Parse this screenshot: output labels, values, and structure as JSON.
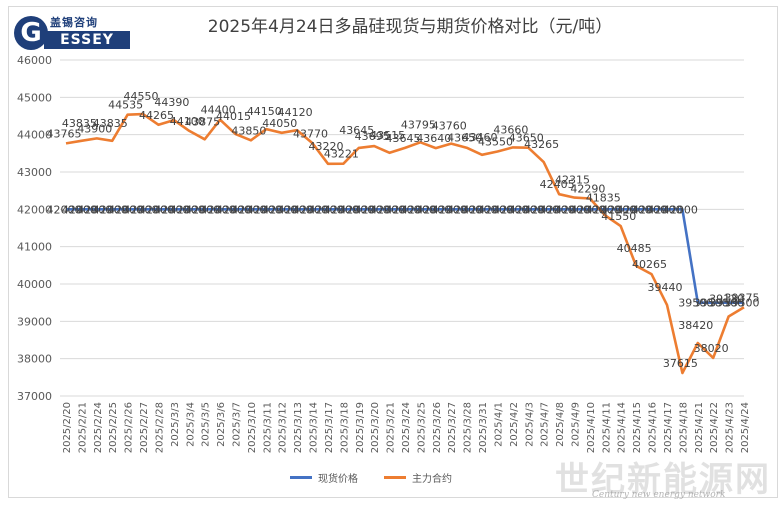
{
  "title": "2025年4月24日多晶硅现货与期货价格对比（元/吨）",
  "logo": {
    "letter": "G",
    "cn": "盖锡咨询",
    "en": "ESSEY"
  },
  "watermark": {
    "cn": "世纪新能源网",
    "en": "Century new energy network"
  },
  "chart_data": {
    "type": "line",
    "title": "2025年4月24日多晶硅现货与期货价格对比（元/吨）",
    "ylim": [
      37000,
      46000
    ],
    "yticks": [
      37000,
      38000,
      39000,
      40000,
      41000,
      42000,
      43000,
      44000,
      45000,
      46000
    ],
    "grid": "horizontal",
    "legend_position": "bottom",
    "x": [
      "2025/2/20",
      "2025/2/21",
      "2025/2/24",
      "2025/2/25",
      "2025/2/26",
      "2025/2/27",
      "2025/2/28",
      "2025/3/3",
      "2025/3/4",
      "2025/3/5",
      "2025/3/6",
      "2025/3/7",
      "2025/3/10",
      "2025/3/11",
      "2025/3/12",
      "2025/3/13",
      "2025/3/14",
      "2025/3/17",
      "2025/3/18",
      "2025/3/19",
      "2025/3/20",
      "2025/3/21",
      "2025/3/24",
      "2025/3/25",
      "2025/3/26",
      "2025/3/27",
      "2025/3/28",
      "2025/3/31",
      "2025/4/1",
      "2025/4/2",
      "2025/4/3",
      "2025/4/7",
      "2025/4/8",
      "2025/4/9",
      "2025/4/10",
      "2025/4/11",
      "2025/4/14",
      "2025/4/15",
      "2025/4/16",
      "2025/4/17",
      "2025/4/18",
      "2025/4/21",
      "2025/4/22",
      "2025/4/23",
      "2025/4/24"
    ],
    "x_tick_labels": [
      "2025/2/20",
      "2025/2/21",
      "2025/2/24",
      "2025/2/25",
      "2025/2/26",
      "2025/2/27",
      "2025/2/28",
      "2025/3/3",
      "2025/3/4",
      "2025/3/5",
      "2025/3/6",
      "2025/3/7",
      "2025/3/10",
      "2025/3/11",
      "2025/3/12",
      "2025/3/13",
      "2025/3/14",
      "2025/3/17",
      "2025/3/18",
      "2025/3/19",
      "2025/3/20",
      "2025/3/21",
      "2025/3/24",
      "2025/3/25",
      "2025/3/26",
      "2025/3/27",
      "2025/3/28",
      "2025/3/31",
      "2025/4/1",
      "2025/4/2",
      "2025/4/3",
      "2025/4/7",
      "2025/4/8",
      "2025/4/9",
      "2025/4/10",
      "2025/4/11",
      "2025/4/14",
      "2025/4/15",
      "2025/4/16",
      "2025/4/17",
      "2025/4/18",
      "2025/4/21",
      "2025/4/22",
      "2025/4/23",
      "2025/4/24"
    ],
    "series": [
      {
        "name": "现货价格",
        "color": "#4472c4",
        "values": [
          42000,
          42000,
          42000,
          42000,
          42000,
          42000,
          42000,
          42000,
          42000,
          42000,
          42000,
          42000,
          42000,
          42000,
          42000,
          42000,
          42000,
          42000,
          42000,
          42000,
          42000,
          42000,
          42000,
          42000,
          42000,
          42000,
          42000,
          42000,
          42000,
          42000,
          42000,
          42000,
          42000,
          42000,
          42000,
          42000,
          42000,
          42000,
          42000,
          42000,
          42000,
          39500,
          39500,
          39500,
          39500
        ]
      },
      {
        "name": "主力合约",
        "color": "#ed7d31",
        "values": [
          43765,
          43835,
          43900,
          43835,
          44535,
          44550,
          44265,
          44390,
          44100,
          43875,
          44400,
          44015,
          43850,
          44150,
          44050,
          44120,
          43770,
          43220,
          43221,
          43645,
          43695,
          43515,
          43645,
          43795,
          43640,
          43760,
          43650,
          43460,
          43550,
          43660,
          43650,
          43265,
          42405,
          42315,
          42290,
          41835,
          41550,
          40485,
          40265,
          39440,
          37615,
          38420,
          38020,
          39130,
          39375
        ]
      }
    ]
  }
}
